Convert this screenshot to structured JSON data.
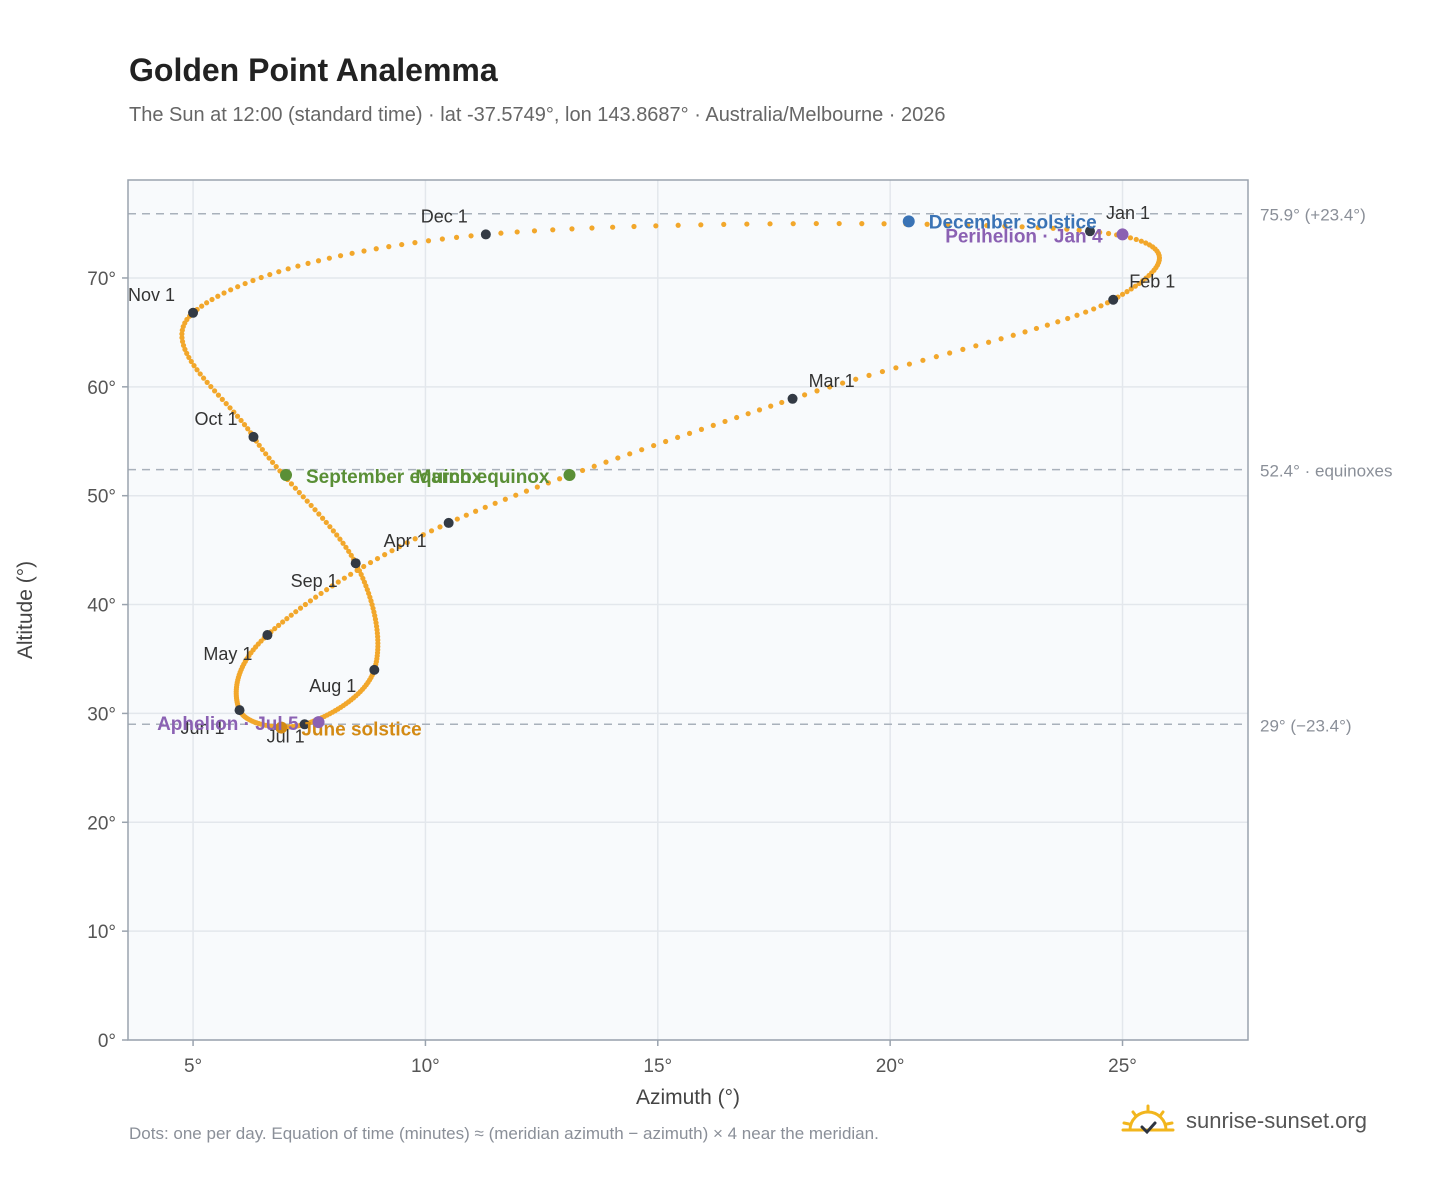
{
  "header": {
    "title": "Golden Point Analemma",
    "subtitle": "The Sun at 12:00 (standard time) · lat -37.5749°, lon 143.8687° · Australia/Melbourne · 2026"
  },
  "footer": {
    "note": "Dots: one per day. Equation of time (minutes) ≈ (meridian azimuth − azimuth) × 4 near the meridian.",
    "brand": "sunrise-sunset.org"
  },
  "colors": {
    "curve": "#f2a72b",
    "month_marker": "#333a44",
    "equinox": "#5a8f36",
    "solstice_dec": "#3a73b5",
    "solstice_jun": "#d38a14",
    "apsis": "#8b61b3",
    "reference_line": "#a9b1bb",
    "plot_bg": "#f8fafc",
    "grid": "#e3e7ec"
  },
  "chart_data": {
    "type": "scatter",
    "xlabel": "Azimuth (°)",
    "ylabel": "Altitude (°)",
    "xlim": [
      3.6,
      27.7
    ],
    "ylim": [
      0,
      79
    ],
    "xticks": [
      5,
      10,
      15,
      20,
      25
    ],
    "yticks": [
      0,
      10,
      20,
      30,
      40,
      50,
      60,
      70
    ],
    "tick_suffix": "°",
    "grid": true,
    "reference_lines": [
      {
        "y": 75.9,
        "label": "75.9° (+23.4°)"
      },
      {
        "y": 52.4,
        "label": "52.4° · equinoxes"
      },
      {
        "y": 29.0,
        "label": "29° (−23.4°)"
      }
    ],
    "month_markers": [
      {
        "label": "Jan 1",
        "x": 24.3,
        "y": 74.3
      },
      {
        "label": "Feb 1",
        "x": 24.8,
        "y": 68.0
      },
      {
        "label": "Mar 1",
        "x": 17.9,
        "y": 58.9
      },
      {
        "label": "Apr 1",
        "x": 10.5,
        "y": 47.5
      },
      {
        "label": "May 1",
        "x": 6.6,
        "y": 37.2
      },
      {
        "label": "Jun 1",
        "x": 6.0,
        "y": 30.3
      },
      {
        "label": "Jul 1",
        "x": 7.4,
        "y": 29.0
      },
      {
        "label": "Aug 1",
        "x": 8.9,
        "y": 34.0
      },
      {
        "label": "Sep 1",
        "x": 8.5,
        "y": 43.8
      },
      {
        "label": "Oct 1",
        "x": 6.3,
        "y": 55.4
      },
      {
        "label": "Nov 1",
        "x": 5.0,
        "y": 66.8
      },
      {
        "label": "Dec 1",
        "x": 11.3,
        "y": 74.0
      }
    ],
    "events": [
      {
        "label": "March equinox",
        "x": 13.1,
        "y": 51.9,
        "kind": "equinox"
      },
      {
        "label": "September equinox",
        "x": 7.0,
        "y": 51.9,
        "kind": "equinox"
      },
      {
        "label": "December solstice",
        "x": 20.4,
        "y": 75.2,
        "kind": "solstice_dec"
      },
      {
        "label": "June solstice",
        "x": 6.9,
        "y": 28.7,
        "kind": "solstice_jun"
      },
      {
        "label": "Perihelion · Jan 4",
        "x": 25.0,
        "y": 74.0,
        "kind": "apsis"
      },
      {
        "label": "Aphelion · Jul 5",
        "x": 7.7,
        "y": 29.2,
        "kind": "apsis"
      }
    ]
  }
}
